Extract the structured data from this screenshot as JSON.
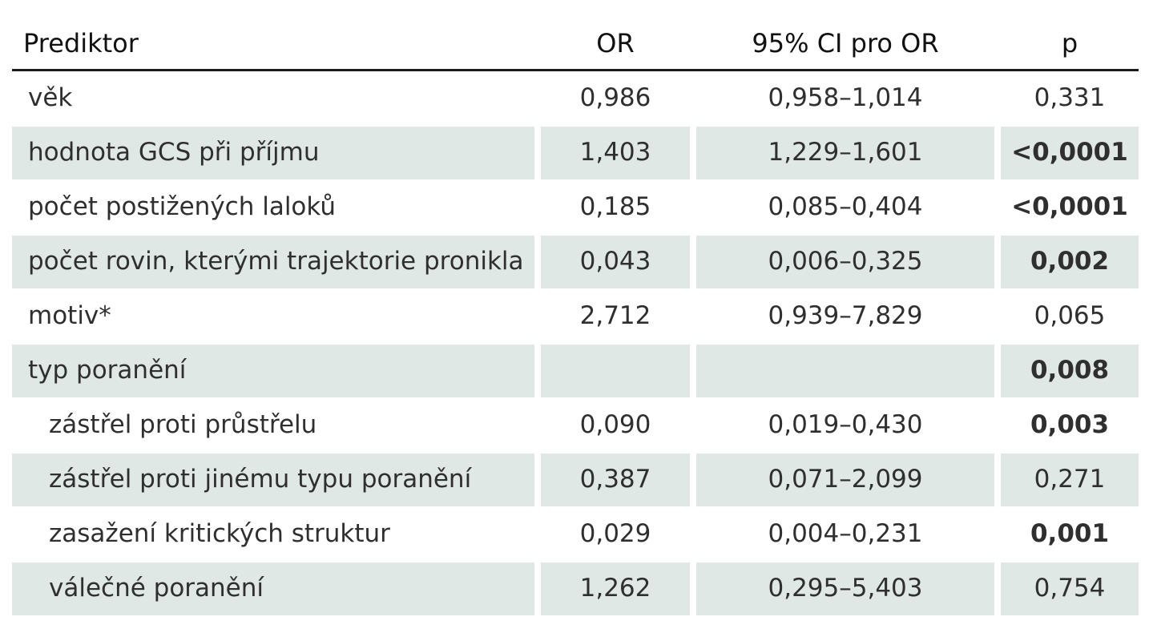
{
  "headers": {
    "predictor": "Prediktor",
    "or": "OR",
    "ci": "95% CI pro OR",
    "p": "p"
  },
  "rows": [
    {
      "predictor": "věk",
      "or": "0,986",
      "ci": "0,958–1,014",
      "p": "0,331",
      "p_bold": false,
      "shaded": false,
      "indent": false
    },
    {
      "predictor": "hodnota GCS při příjmu",
      "or": "1,403",
      "ci": "1,229–1,601",
      "p": "<0,0001",
      "p_bold": true,
      "shaded": true,
      "indent": false
    },
    {
      "predictor": "počet postižených laloků",
      "or": "0,185",
      "ci": "0,085–0,404",
      "p": "<0,0001",
      "p_bold": true,
      "shaded": false,
      "indent": false
    },
    {
      "predictor": "počet rovin, kterými trajektorie pronikla",
      "or": "0,043",
      "ci": "0,006–0,325",
      "p": "0,002",
      "p_bold": true,
      "shaded": true,
      "indent": false
    },
    {
      "predictor": "motiv*",
      "or": "2,712",
      "ci": "0,939–7,829",
      "p": "0,065",
      "p_bold": false,
      "shaded": false,
      "indent": false
    },
    {
      "predictor": "typ poranění",
      "or": "",
      "ci": "",
      "p": "0,008",
      "p_bold": true,
      "shaded": true,
      "indent": false
    },
    {
      "predictor": "zástřel proti průstřelu",
      "or": "0,090",
      "ci": "0,019–0,430",
      "p": "0,003",
      "p_bold": true,
      "shaded": false,
      "indent": true
    },
    {
      "predictor": "zástřel proti jinému typu poranění",
      "or": "0,387",
      "ci": "0,071–2,099",
      "p": "0,271",
      "p_bold": false,
      "shaded": true,
      "indent": true
    },
    {
      "predictor": "zasažení kritických struktur",
      "or": "0,029",
      "ci": "0,004–0,231",
      "p": "0,001",
      "p_bold": true,
      "shaded": false,
      "indent": true
    },
    {
      "predictor": "válečné poranění",
      "or": "1,262",
      "ci": "0,295–5,403",
      "p": "0,754",
      "p_bold": false,
      "shaded": true,
      "indent": true
    }
  ]
}
